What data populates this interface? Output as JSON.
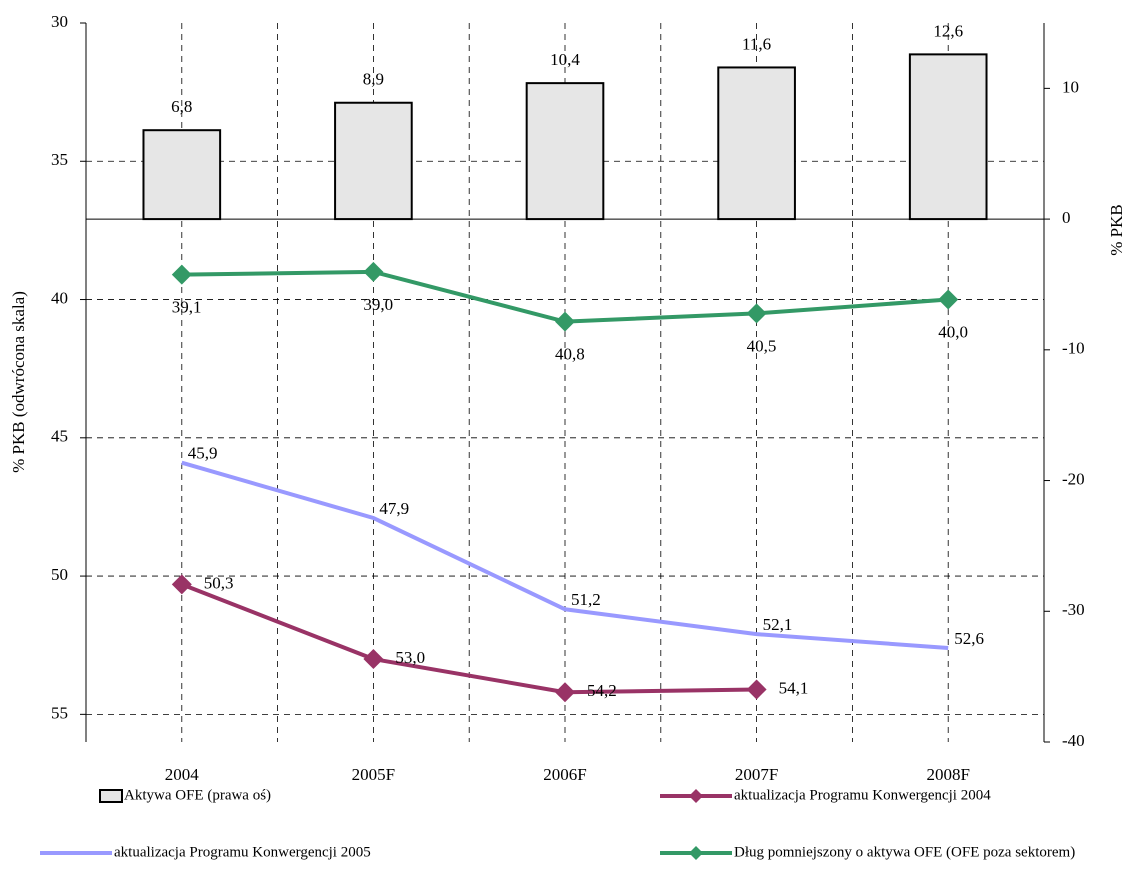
{
  "chart_data": {
    "type": "combo",
    "categories": [
      "2004",
      "2005F",
      "2006F",
      "2007F",
      "2008F"
    ],
    "ylabel": "% PKB (odwrócona skala)",
    "y2label": "% PKB",
    "ylim": [
      56,
      30
    ],
    "yticks": [
      30,
      35,
      40,
      45,
      50,
      55
    ],
    "y2lim": [
      -40,
      15
    ],
    "y2ticks": [
      10,
      0,
      -10,
      -20,
      -30,
      -40
    ],
    "grid": true,
    "series": [
      {
        "name": "Aktywa OFE (prawa oś)",
        "type": "bar",
        "axis": "y2",
        "color": "#e6e6e6",
        "values": [
          6.8,
          8.9,
          10.4,
          11.6,
          12.6
        ],
        "value_labels": [
          "6,8",
          "8,9",
          "10,4",
          "11,6",
          "12,6"
        ]
      },
      {
        "name": "aktualizacja Programu Konwergencji 2004",
        "type": "line",
        "color": "#993366",
        "marker": "diamond",
        "values": [
          50.3,
          53.0,
          54.2,
          54.1,
          null
        ],
        "value_labels": [
          "50,3",
          "53,0",
          "54,2",
          "54,1",
          null
        ]
      },
      {
        "name": "aktualizacja Programu Konwergencji 2005",
        "type": "line",
        "color": "#9999ff",
        "values": [
          45.9,
          47.9,
          51.2,
          52.1,
          52.6
        ],
        "value_labels": [
          "45,9",
          "47,9",
          "51,2",
          "52,1",
          "52,6"
        ]
      },
      {
        "name": "Dług pomniejszony o aktywa OFE (OFE poza sektorem)",
        "type": "line",
        "color": "#339966",
        "marker": "diamond",
        "values": [
          39.1,
          39.0,
          40.8,
          40.5,
          40.0
        ],
        "value_labels": [
          "39,1",
          "39,0",
          "40,8",
          "40,5",
          "40,0"
        ]
      }
    ]
  }
}
